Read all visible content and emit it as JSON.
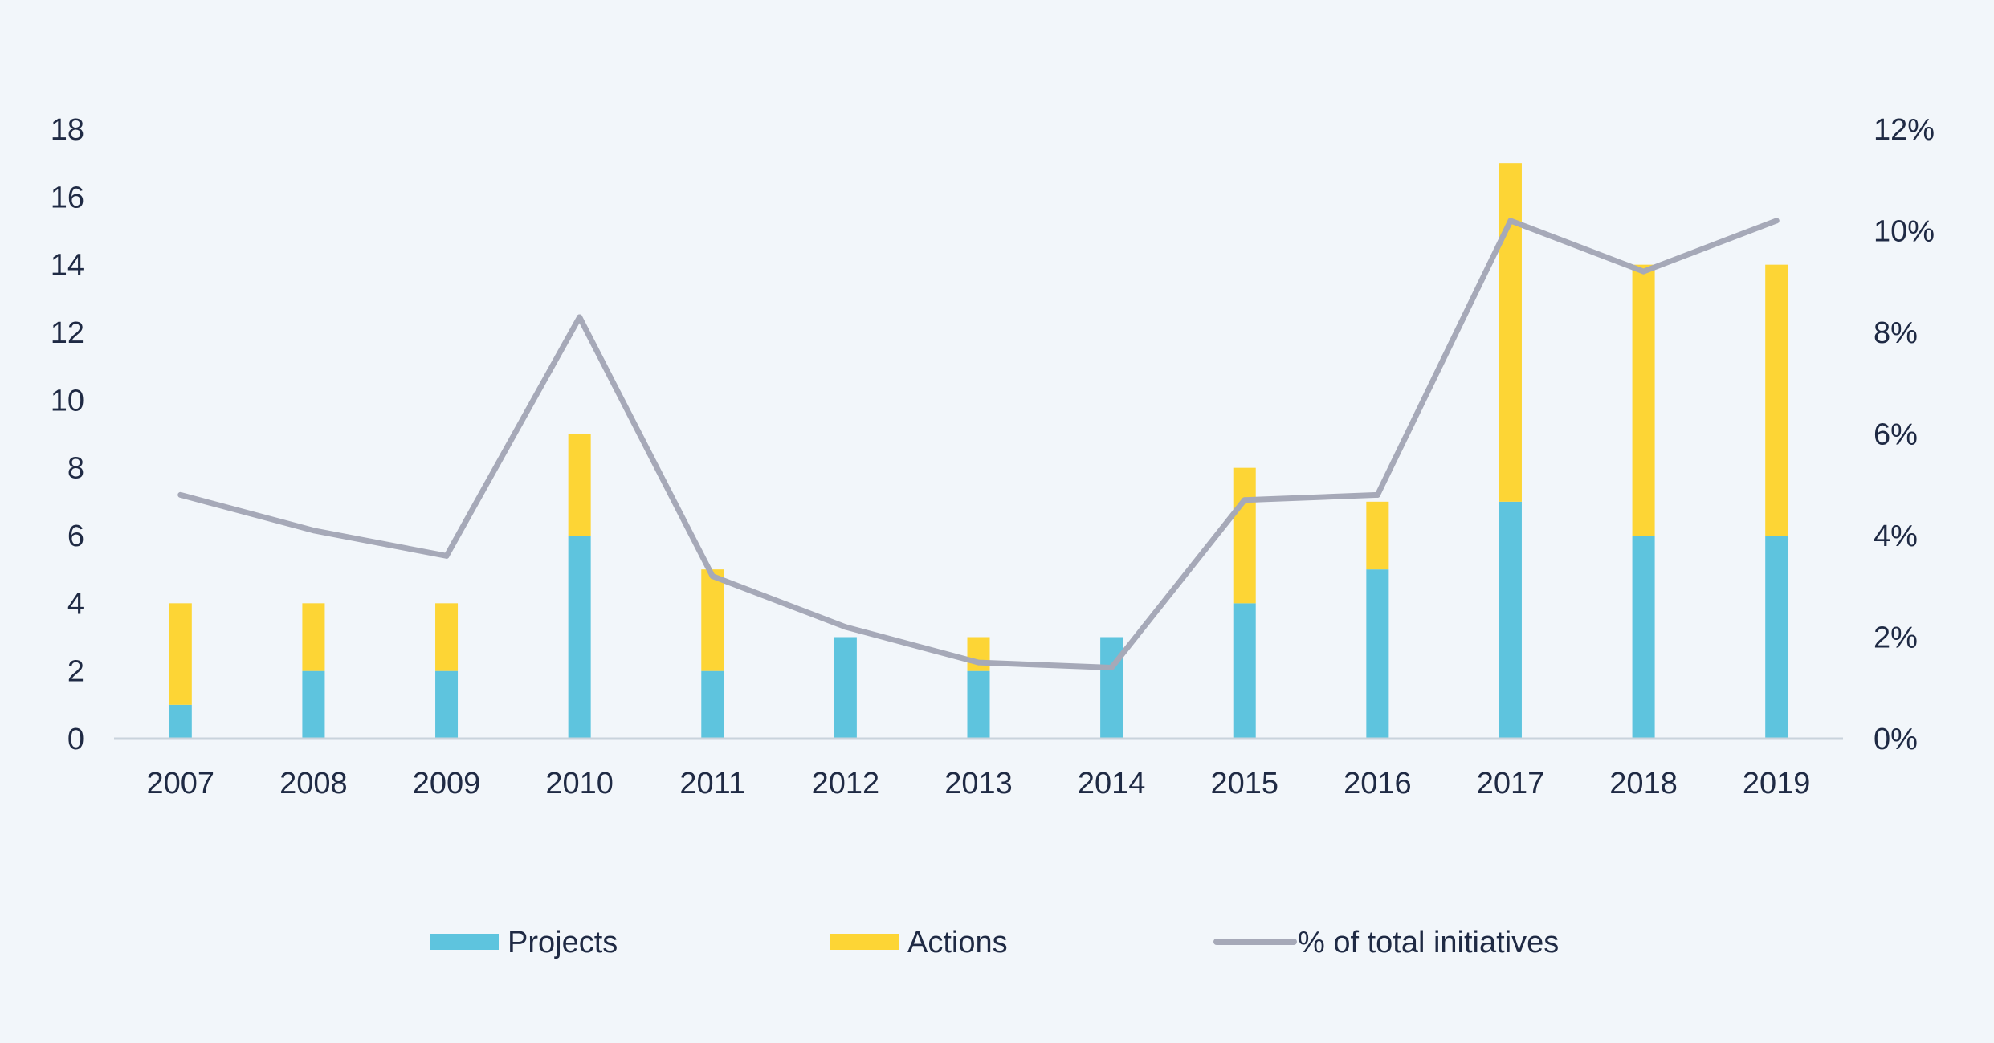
{
  "chart_data": {
    "type": "bar",
    "categories": [
      "2007",
      "2008",
      "2009",
      "2010",
      "2011",
      "2012",
      "2013",
      "2014",
      "2015",
      "2016",
      "2017",
      "2018",
      "2019"
    ],
    "series": [
      {
        "name": "Projects",
        "kind": "bar",
        "stacked": true,
        "axis": "left",
        "color": "#5ec4de",
        "values": [
          1,
          2,
          2,
          6,
          2,
          3,
          2,
          3,
          4,
          5,
          7,
          6,
          6
        ]
      },
      {
        "name": "Actions",
        "kind": "bar",
        "stacked": true,
        "axis": "left",
        "color": "#fdd535",
        "values": [
          3,
          2,
          2,
          3,
          3,
          0,
          1,
          0,
          4,
          2,
          10,
          8,
          8
        ]
      },
      {
        "name": "% of total initiatives",
        "kind": "line",
        "axis": "right",
        "color": "#a6a9b8",
        "values": [
          4.8,
          4.1,
          3.6,
          8.3,
          3.2,
          2.2,
          1.5,
          1.4,
          4.7,
          4.8,
          10.2,
          9.2,
          10.2
        ]
      }
    ],
    "y_left": {
      "min": 0,
      "max": 18,
      "ticks": [
        "0",
        "2",
        "4",
        "6",
        "8",
        "10",
        "12",
        "14",
        "16",
        "18"
      ]
    },
    "y_right": {
      "min": 0,
      "max": 12,
      "ticks": [
        "0%",
        "2%",
        "4%",
        "6%",
        "8%",
        "10%",
        "12%"
      ]
    },
    "title": "",
    "xlabel": "",
    "ylabel": "",
    "grid": false,
    "legend": {
      "position": "bottom",
      "items": [
        "Projects",
        "Actions",
        "% of total initiatives"
      ]
    }
  }
}
